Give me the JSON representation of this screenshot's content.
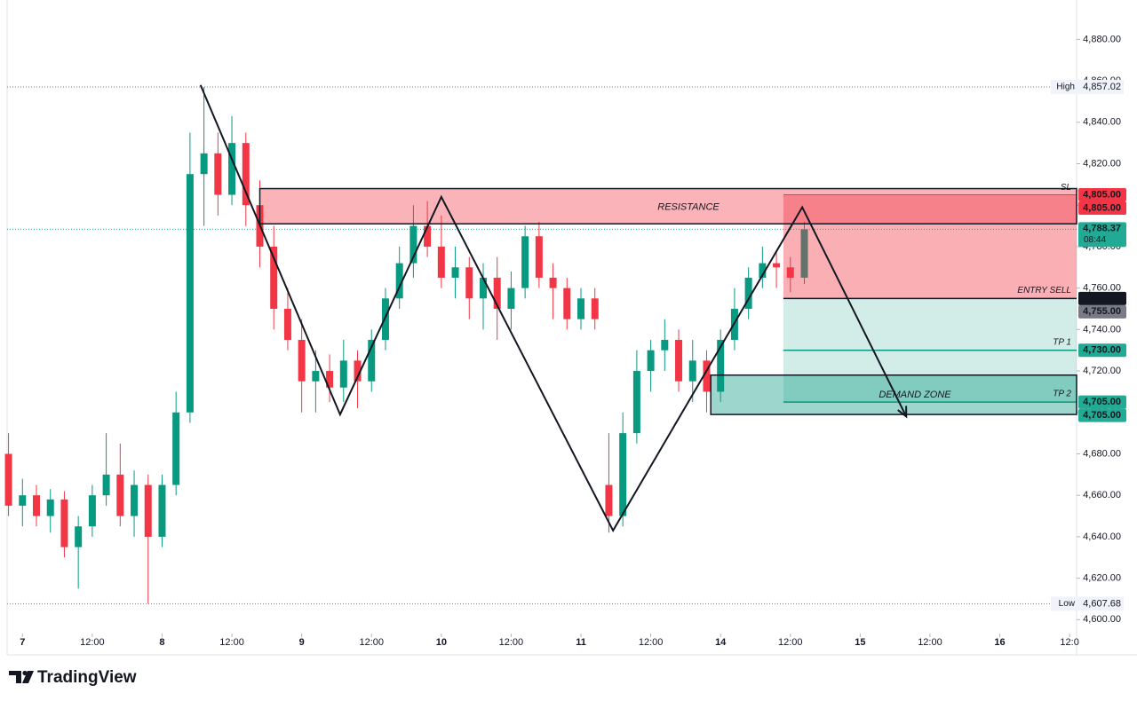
{
  "chart_data": {
    "type": "candlestick",
    "x": [
      -0.2,
      0,
      0.2,
      0.4,
      0.6,
      0.8,
      1,
      1.2,
      1.4,
      1.6,
      1.8,
      2,
      2.2,
      2.4,
      2.6,
      2.8,
      3,
      3.2,
      3.4,
      3.6,
      3.8,
      4,
      4.2,
      4.4,
      4.6,
      4.8,
      5,
      5.2,
      5.4,
      5.6,
      5.8,
      6,
      6.2,
      6.4,
      6.6,
      6.8,
      7,
      7.2,
      7.4,
      7.6,
      7.8,
      8,
      8.2,
      8.4,
      8.6,
      8.8,
      9,
      9.2,
      9.4,
      9.6,
      9.8,
      10,
      10.2,
      10.4,
      10.6,
      10.8,
      11,
      11.2
    ],
    "open": [
      4680,
      4655,
      4660,
      4650,
      4658,
      4635,
      4645,
      4660,
      4670,
      4650,
      4665,
      4640,
      4665,
      4700,
      4815,
      4825,
      4805,
      4830,
      4800,
      4780,
      4750,
      4735,
      4715,
      4720,
      4712,
      4725,
      4715,
      4735,
      4755,
      4772,
      4790,
      4780,
      4765,
      4770,
      4755,
      4765,
      4750,
      4760,
      4785,
      4765,
      4760,
      4745,
      4755,
      4665,
      4650,
      4690,
      4720,
      4730,
      4735,
      4715,
      4725,
      4710,
      4735,
      4750,
      4765,
      4772,
      4770,
      4765
    ],
    "high": [
      4690,
      4668,
      4665,
      4663,
      4662,
      4650,
      4665,
      4690,
      4685,
      4672,
      4670,
      4670,
      4710,
      4835,
      4857.02,
      4835,
      4843,
      4835,
      4812,
      4790,
      4760,
      4745,
      4730,
      4728,
      4735,
      4730,
      4740,
      4760,
      4780,
      4800,
      4802,
      4795,
      4780,
      4775,
      4772,
      4775,
      4768,
      4790,
      4792,
      4772,
      4765,
      4760,
      4760,
      4690,
      4700,
      4730,
      4735,
      4745,
      4740,
      4735,
      4730,
      4740,
      4760,
      4770,
      4780,
      4778,
      4775,
      4792
    ],
    "low": [
      4650,
      4645,
      4645,
      4642,
      4630,
      4615,
      4640,
      4655,
      4645,
      4640,
      4607.68,
      4635,
      4660,
      4695,
      4790,
      4795,
      4800,
      4790,
      4770,
      4740,
      4730,
      4700,
      4700,
      4705,
      4705,
      4702,
      4710,
      4730,
      4750,
      4765,
      4775,
      4760,
      4755,
      4745,
      4740,
      4735,
      4740,
      4755,
      4760,
      4745,
      4740,
      4740,
      4740,
      4642,
      4645,
      4685,
      4710,
      4720,
      4710,
      4705,
      4700,
      4705,
      4730,
      4745,
      4760,
      4760,
      4758,
      4762
    ],
    "close": [
      4655,
      4660,
      4650,
      4658,
      4635,
      4645,
      4660,
      4670,
      4650,
      4665,
      4640,
      4665,
      4700,
      4815,
      4825,
      4805,
      4830,
      4800,
      4780,
      4750,
      4735,
      4715,
      4720,
      4712,
      4725,
      4715,
      4735,
      4755,
      4772,
      4790,
      4780,
      4765,
      4770,
      4755,
      4765,
      4750,
      4760,
      4785,
      4765,
      4760,
      4745,
      4755,
      4745,
      4650,
      4690,
      4720,
      4730,
      4735,
      4715,
      4725,
      4710,
      4735,
      4750,
      4765,
      4772,
      4770,
      4765,
      4788.37
    ],
    "up_color": "#089981",
    "down_color": "#f23645",
    "xlim": [
      -0.22,
      15.1
    ],
    "ylim": [
      4595,
      4899
    ],
    "xticks": [
      {
        "value": 0,
        "label": "7"
      },
      {
        "value": 1,
        "label": "12:00"
      },
      {
        "value": 2,
        "label": "8"
      },
      {
        "value": 3,
        "label": "12:00"
      },
      {
        "value": 4,
        "label": "9"
      },
      {
        "value": 5,
        "label": "12:00"
      },
      {
        "value": 6,
        "label": "10"
      },
      {
        "value": 7,
        "label": "12:00"
      },
      {
        "value": 8,
        "label": "11"
      },
      {
        "value": 9,
        "label": "12:00"
      },
      {
        "value": 10,
        "label": "14"
      },
      {
        "value": 11,
        "label": "12:00"
      },
      {
        "value": 12,
        "label": "15"
      },
      {
        "value": 13,
        "label": "12:00"
      },
      {
        "value": 14,
        "label": "16"
      },
      {
        "value": 15,
        "label": "12:0"
      }
    ],
    "yticks": [
      {
        "value": 4600,
        "label": "4,600.00"
      },
      {
        "value": 4620,
        "label": "4,620.00"
      },
      {
        "value": 4640,
        "label": "4,640.00"
      },
      {
        "value": 4660,
        "label": "4,660.00"
      },
      {
        "value": 4680,
        "label": "4,680.00"
      },
      {
        "value": 4700,
        "label": "4,700.00"
      },
      {
        "value": 4720,
        "label": "4,720.00"
      },
      {
        "value": 4740,
        "label": "4,740.00"
      },
      {
        "value": 4760,
        "label": "4,760.00"
      },
      {
        "value": 4780,
        "label": "4,780.00"
      },
      {
        "value": 4800,
        "label": "4,800.00"
      },
      {
        "value": 4820,
        "label": "4,820.00"
      },
      {
        "value": 4840,
        "label": "4,840.00"
      },
      {
        "value": 4860,
        "label": "4,860.00"
      },
      {
        "value": 4880,
        "label": "4,880.00"
      }
    ],
    "high_marker": {
      "name": "High",
      "value": 4857.02,
      "label": "4,857.02"
    },
    "low_marker": {
      "name": "Low",
      "value": 4607.68,
      "label": "4,607.68"
    },
    "last_price": {
      "value": 4788.37,
      "label": "4,788.37",
      "countdown": "08:44",
      "color": "#22ab94"
    },
    "price_labels": [
      {
        "value": 4805,
        "label": "4,805.00",
        "color": "#f23645"
      },
      {
        "value": 4805,
        "label": "4,805.00",
        "color": "#f23645"
      },
      {
        "value": 4755,
        "label": "4,755.00",
        "color": "#131722"
      },
      {
        "value": 4755,
        "label": "4,755.00",
        "color": "#787b86"
      },
      {
        "value": 4730,
        "label": "4,730.00",
        "color": "#22ab94"
      },
      {
        "value": 4705,
        "label": "4,705.00",
        "color": "#22ab94"
      },
      {
        "value": 4705,
        "label": "4,705.00",
        "color": "#22ab94"
      }
    ],
    "resistance": {
      "label": "RESISTANCE",
      "x_start": 3.4,
      "bottom": 4791,
      "top": 4808
    },
    "demand": {
      "label": "DEMAND ZONE",
      "x_start": 9.86,
      "bottom": 4699,
      "top": 4718
    },
    "position": {
      "x_start": 10.9,
      "sl": {
        "value": 4805,
        "label": "SL"
      },
      "entry": {
        "value": 4755,
        "label": "ENTRY SELL"
      },
      "tp1": {
        "value": 4730,
        "label": "TP 1"
      },
      "tp2": {
        "value": 4705,
        "label": "TP 2"
      }
    },
    "zigzag": {
      "x": [
        2.55,
        4.55,
        6.0,
        8.46,
        11.17,
        12.66
      ],
      "y": [
        4858,
        4699,
        4804,
        4643,
        4799,
        4698
      ]
    }
  },
  "footer": {
    "brand": "TradingView"
  }
}
